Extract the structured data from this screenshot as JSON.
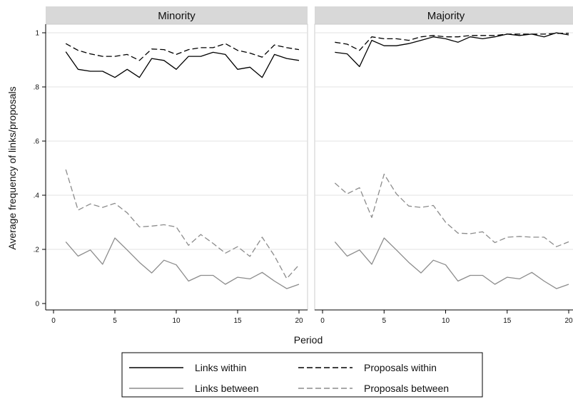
{
  "chart_data": {
    "type": "line",
    "ylabel": "Average frequency of links/proposals",
    "xlabel": "Period",
    "xlim": [
      0,
      20
    ],
    "ylim": [
      0,
      1
    ],
    "x_ticks": [
      0,
      5,
      10,
      15,
      20
    ],
    "y_ticks": [
      {
        "value": 0,
        "label": "0"
      },
      {
        "value": 0.2,
        "label": ".2"
      },
      {
        "value": 0.4,
        "label": ".4"
      },
      {
        "value": 0.6,
        "label": ".6"
      },
      {
        "value": 0.8,
        "label": ".8"
      },
      {
        "value": 1,
        "label": "1"
      }
    ],
    "grid": "horizontal",
    "legend_position": "bottom",
    "x": [
      1,
      2,
      3,
      4,
      5,
      6,
      7,
      8,
      9,
      10,
      11,
      12,
      13,
      14,
      15,
      16,
      17,
      18,
      19,
      20
    ],
    "series_styles": [
      {
        "name": "Links within",
        "color": "#000000",
        "dash": "solid"
      },
      {
        "name": "Proposals within",
        "color": "#000000",
        "dash": "dashed"
      },
      {
        "name": "Links between",
        "color": "#8c8c8c",
        "dash": "solid"
      },
      {
        "name": "Proposals between",
        "color": "#8c8c8c",
        "dash": "dashed"
      }
    ],
    "panels": [
      {
        "title": "Minority",
        "series": [
          {
            "name": "Links within",
            "values": [
              0.93,
              0.865,
              0.858,
              0.858,
              0.835,
              0.865,
              0.835,
              0.905,
              0.898,
              0.865,
              0.913,
              0.913,
              0.928,
              0.92,
              0.865,
              0.873,
              0.835,
              0.92,
              0.905,
              0.898
            ]
          },
          {
            "name": "Proposals within",
            "values": [
              0.96,
              0.935,
              0.922,
              0.913,
              0.913,
              0.92,
              0.898,
              0.94,
              0.938,
              0.92,
              0.938,
              0.945,
              0.945,
              0.96,
              0.935,
              0.925,
              0.91,
              0.955,
              0.945,
              0.938
            ]
          },
          {
            "name": "Links between",
            "values": [
              0.228,
              0.175,
              0.198,
              0.145,
              0.242,
              0.198,
              0.152,
              0.113,
              0.16,
              0.143,
              0.083,
              0.104,
              0.104,
              0.071,
              0.097,
              0.091,
              0.115,
              0.083,
              0.055,
              0.071
            ]
          },
          {
            "name": "Proposals between",
            "values": [
              0.495,
              0.345,
              0.368,
              0.355,
              0.37,
              0.335,
              0.283,
              0.286,
              0.291,
              0.283,
              0.215,
              0.255,
              0.222,
              0.186,
              0.21,
              0.174,
              0.245,
              0.176,
              0.092,
              0.143
            ]
          }
        ]
      },
      {
        "title": "Majority",
        "series": [
          {
            "name": "Links within",
            "values": [
              0.928,
              0.922,
              0.875,
              0.972,
              0.952,
              0.952,
              0.96,
              0.972,
              0.985,
              0.978,
              0.965,
              0.985,
              0.978,
              0.985,
              0.995,
              0.99,
              0.995,
              0.985,
              1.0,
              0.992
            ]
          },
          {
            "name": "Proposals within",
            "values": [
              0.965,
              0.958,
              0.935,
              0.985,
              0.978,
              0.978,
              0.972,
              0.985,
              0.99,
              0.985,
              0.985,
              0.99,
              0.99,
              0.99,
              0.995,
              0.995,
              0.995,
              0.995,
              0.998,
              0.998
            ]
          },
          {
            "name": "Links between",
            "values": [
              0.228,
              0.175,
              0.198,
              0.145,
              0.242,
              0.198,
              0.152,
              0.113,
              0.16,
              0.143,
              0.083,
              0.104,
              0.104,
              0.071,
              0.097,
              0.091,
              0.115,
              0.083,
              0.055,
              0.071
            ]
          },
          {
            "name": "Proposals between",
            "values": [
              0.445,
              0.405,
              0.428,
              0.318,
              0.478,
              0.405,
              0.36,
              0.355,
              0.362,
              0.3,
              0.26,
              0.258,
              0.265,
              0.225,
              0.245,
              0.248,
              0.245,
              0.245,
              0.21,
              0.228
            ]
          }
        ]
      }
    ]
  }
}
